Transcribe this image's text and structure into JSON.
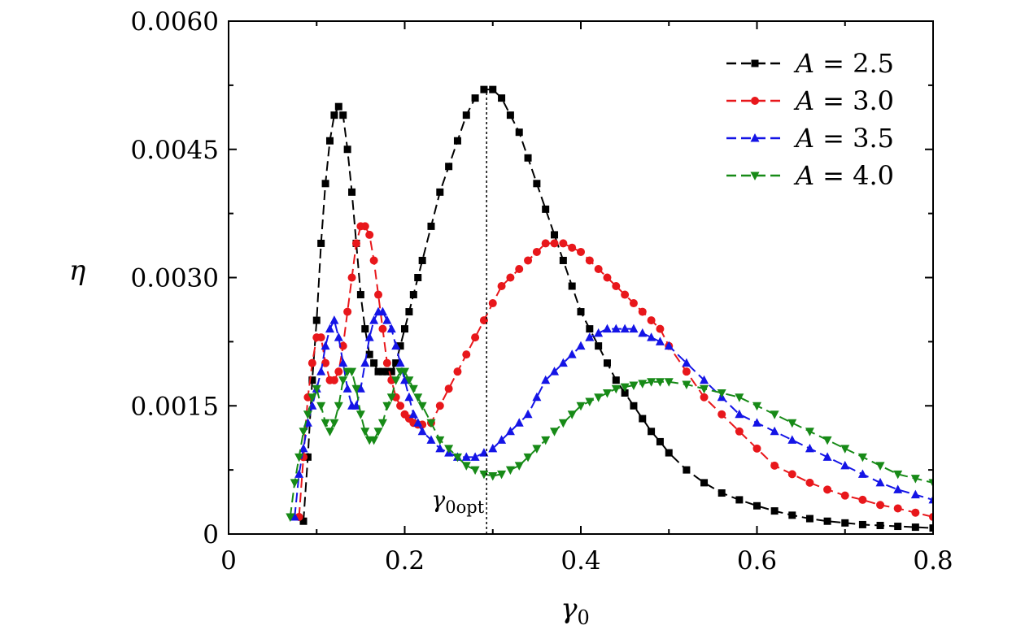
{
  "chart_data": {
    "type": "line",
    "title": "",
    "xlabel": "γ",
    "xlabel_sub": "0",
    "ylabel": "η",
    "xlim": [
      0,
      0.8
    ],
    "ylim": [
      0,
      0.006
    ],
    "x_ticks": [
      0,
      0.2,
      0.4,
      0.6,
      0.8
    ],
    "x_tick_labels": [
      "0",
      "0.2",
      "0.4",
      "0.6",
      "0.8"
    ],
    "y_ticks": [
      0,
      0.0015,
      0.003,
      0.0045,
      0.006
    ],
    "y_tick_labels": [
      "0",
      "0.0015",
      "0.0030",
      "0.0045",
      "0.0060"
    ],
    "grid": false,
    "legend_position": "top-right",
    "annotation": {
      "text": "γ",
      "sub": "0opt",
      "x": 0.293
    },
    "series": [
      {
        "name": "A = 2.5",
        "label_var": "A",
        "label_value": "= 2.5",
        "color": "#000000",
        "marker": "square",
        "x": [
          0.085,
          0.09,
          0.095,
          0.1,
          0.105,
          0.11,
          0.115,
          0.12,
          0.125,
          0.13,
          0.135,
          0.14,
          0.145,
          0.15,
          0.155,
          0.16,
          0.165,
          0.17,
          0.175,
          0.18,
          0.185,
          0.19,
          0.195,
          0.2,
          0.205,
          0.21,
          0.215,
          0.22,
          0.23,
          0.24,
          0.25,
          0.26,
          0.27,
          0.28,
          0.29,
          0.3,
          0.31,
          0.32,
          0.33,
          0.34,
          0.35,
          0.36,
          0.37,
          0.38,
          0.39,
          0.4,
          0.41,
          0.42,
          0.43,
          0.44,
          0.45,
          0.46,
          0.47,
          0.48,
          0.49,
          0.5,
          0.52,
          0.54,
          0.56,
          0.58,
          0.6,
          0.62,
          0.64,
          0.66,
          0.68,
          0.7,
          0.72,
          0.74,
          0.76,
          0.78,
          0.8
        ],
        "values": [
          0.00015,
          0.0009,
          0.0018,
          0.0025,
          0.0034,
          0.0041,
          0.0046,
          0.0049,
          0.005,
          0.0049,
          0.0045,
          0.004,
          0.0034,
          0.0028,
          0.0024,
          0.0021,
          0.002,
          0.0019,
          0.0019,
          0.0019,
          0.0019,
          0.002,
          0.0022,
          0.0024,
          0.0026,
          0.0028,
          0.003,
          0.0032,
          0.0036,
          0.004,
          0.0043,
          0.0046,
          0.0049,
          0.0051,
          0.0052,
          0.0052,
          0.0051,
          0.0049,
          0.0047,
          0.0044,
          0.0041,
          0.0038,
          0.0035,
          0.0032,
          0.0029,
          0.0026,
          0.0024,
          0.0022,
          0.002,
          0.0018,
          0.00165,
          0.0015,
          0.00135,
          0.0012,
          0.00108,
          0.00095,
          0.00075,
          0.0006,
          0.00048,
          0.0004,
          0.00033,
          0.00027,
          0.00022,
          0.00018,
          0.00015,
          0.00013,
          0.00011,
          0.0001,
          9e-05,
          8e-05,
          7e-05
        ]
      },
      {
        "name": "A = 3.0",
        "label_var": "A",
        "label_value": "= 3.0",
        "color": "#e8171b",
        "marker": "circle",
        "x": [
          0.08,
          0.085,
          0.09,
          0.095,
          0.1,
          0.105,
          0.11,
          0.115,
          0.12,
          0.125,
          0.13,
          0.135,
          0.14,
          0.145,
          0.15,
          0.155,
          0.16,
          0.165,
          0.17,
          0.175,
          0.18,
          0.185,
          0.19,
          0.195,
          0.2,
          0.205,
          0.21,
          0.215,
          0.22,
          0.23,
          0.24,
          0.25,
          0.26,
          0.27,
          0.28,
          0.29,
          0.3,
          0.31,
          0.32,
          0.33,
          0.34,
          0.35,
          0.36,
          0.37,
          0.38,
          0.39,
          0.4,
          0.41,
          0.42,
          0.43,
          0.44,
          0.45,
          0.46,
          0.47,
          0.48,
          0.49,
          0.5,
          0.52,
          0.54,
          0.56,
          0.58,
          0.6,
          0.62,
          0.64,
          0.66,
          0.68,
          0.7,
          0.72,
          0.74,
          0.76,
          0.78,
          0.8
        ],
        "values": [
          0.0002,
          0.0009,
          0.0016,
          0.002,
          0.0023,
          0.0023,
          0.002,
          0.0018,
          0.0018,
          0.0019,
          0.0022,
          0.0026,
          0.003,
          0.0034,
          0.0036,
          0.0036,
          0.0035,
          0.0032,
          0.0028,
          0.0024,
          0.002,
          0.0018,
          0.0016,
          0.0015,
          0.0014,
          0.00135,
          0.0013,
          0.00128,
          0.00128,
          0.0013,
          0.0015,
          0.0017,
          0.0019,
          0.0021,
          0.0023,
          0.0025,
          0.0027,
          0.0029,
          0.003,
          0.0031,
          0.0032,
          0.0033,
          0.0034,
          0.0034,
          0.0034,
          0.00335,
          0.0033,
          0.0032,
          0.0031,
          0.003,
          0.0029,
          0.0028,
          0.0027,
          0.0026,
          0.0025,
          0.0024,
          0.0022,
          0.0019,
          0.0016,
          0.0014,
          0.0012,
          0.001,
          0.0008,
          0.0007,
          0.0006,
          0.00052,
          0.00045,
          0.0004,
          0.00034,
          0.0003,
          0.00025,
          0.0002
        ]
      },
      {
        "name": "A = 3.5",
        "label_var": "A",
        "label_value": "= 3.5",
        "color": "#1414e6",
        "marker": "triangle-up",
        "x": [
          0.075,
          0.08,
          0.085,
          0.09,
          0.095,
          0.1,
          0.105,
          0.11,
          0.115,
          0.12,
          0.125,
          0.13,
          0.135,
          0.14,
          0.145,
          0.15,
          0.155,
          0.16,
          0.165,
          0.17,
          0.175,
          0.18,
          0.185,
          0.19,
          0.195,
          0.2,
          0.205,
          0.21,
          0.215,
          0.22,
          0.23,
          0.24,
          0.25,
          0.26,
          0.27,
          0.28,
          0.29,
          0.3,
          0.31,
          0.32,
          0.33,
          0.34,
          0.35,
          0.36,
          0.37,
          0.38,
          0.39,
          0.4,
          0.41,
          0.42,
          0.43,
          0.44,
          0.45,
          0.46,
          0.47,
          0.48,
          0.49,
          0.5,
          0.52,
          0.54,
          0.56,
          0.58,
          0.6,
          0.62,
          0.64,
          0.66,
          0.68,
          0.7,
          0.72,
          0.74,
          0.76,
          0.78,
          0.8
        ],
        "values": [
          0.0002,
          0.0007,
          0.001,
          0.0013,
          0.0015,
          0.0017,
          0.0019,
          0.0022,
          0.0024,
          0.0025,
          0.0023,
          0.002,
          0.0017,
          0.0015,
          0.0015,
          0.0017,
          0.002,
          0.0023,
          0.0025,
          0.0026,
          0.0026,
          0.0025,
          0.0024,
          0.0022,
          0.002,
          0.0018,
          0.0016,
          0.0014,
          0.0013,
          0.0012,
          0.0011,
          0.001,
          0.00095,
          0.0009,
          0.0009,
          0.0009,
          0.00095,
          0.001,
          0.0011,
          0.0012,
          0.0013,
          0.0014,
          0.0016,
          0.0018,
          0.0019,
          0.002,
          0.0021,
          0.0022,
          0.0023,
          0.00235,
          0.0024,
          0.0024,
          0.0024,
          0.0024,
          0.00235,
          0.0023,
          0.00225,
          0.0022,
          0.002,
          0.0018,
          0.0016,
          0.0014,
          0.0013,
          0.0012,
          0.0011,
          0.001,
          0.0009,
          0.0008,
          0.0007,
          0.0006,
          0.00052,
          0.00046,
          0.0004
        ]
      },
      {
        "name": "A = 4.0",
        "label_var": "A",
        "label_value": "= 4.0",
        "color": "#178a17",
        "marker": "triangle-down",
        "x": [
          0.07,
          0.075,
          0.08,
          0.085,
          0.09,
          0.095,
          0.1,
          0.105,
          0.11,
          0.115,
          0.12,
          0.125,
          0.13,
          0.135,
          0.14,
          0.145,
          0.15,
          0.155,
          0.16,
          0.165,
          0.17,
          0.175,
          0.18,
          0.185,
          0.19,
          0.195,
          0.2,
          0.205,
          0.21,
          0.215,
          0.22,
          0.23,
          0.24,
          0.25,
          0.26,
          0.27,
          0.28,
          0.29,
          0.3,
          0.31,
          0.32,
          0.33,
          0.34,
          0.35,
          0.36,
          0.37,
          0.38,
          0.39,
          0.4,
          0.41,
          0.42,
          0.43,
          0.44,
          0.45,
          0.46,
          0.47,
          0.48,
          0.49,
          0.5,
          0.52,
          0.54,
          0.56,
          0.58,
          0.6,
          0.62,
          0.64,
          0.66,
          0.68,
          0.7,
          0.72,
          0.74,
          0.76,
          0.78,
          0.8
        ],
        "values": [
          0.0002,
          0.0006,
          0.0009,
          0.0012,
          0.0014,
          0.0016,
          0.0017,
          0.0015,
          0.0013,
          0.0012,
          0.0013,
          0.0015,
          0.0018,
          0.0019,
          0.0019,
          0.0017,
          0.0014,
          0.0012,
          0.0011,
          0.0011,
          0.0012,
          0.0013,
          0.0015,
          0.0016,
          0.0018,
          0.0019,
          0.0019,
          0.0018,
          0.0017,
          0.0016,
          0.0015,
          0.0013,
          0.0011,
          0.001,
          0.0009,
          0.0008,
          0.00075,
          0.0007,
          0.00068,
          0.0007,
          0.00075,
          0.0008,
          0.0009,
          0.001,
          0.0011,
          0.0012,
          0.0013,
          0.0014,
          0.0015,
          0.00155,
          0.0016,
          0.00165,
          0.0017,
          0.00172,
          0.00174,
          0.00176,
          0.00178,
          0.00178,
          0.00178,
          0.00175,
          0.0017,
          0.00165,
          0.0016,
          0.0015,
          0.0014,
          0.0013,
          0.0012,
          0.0011,
          0.001,
          0.0009,
          0.0008,
          0.0007,
          0.00065,
          0.0006
        ]
      }
    ]
  }
}
